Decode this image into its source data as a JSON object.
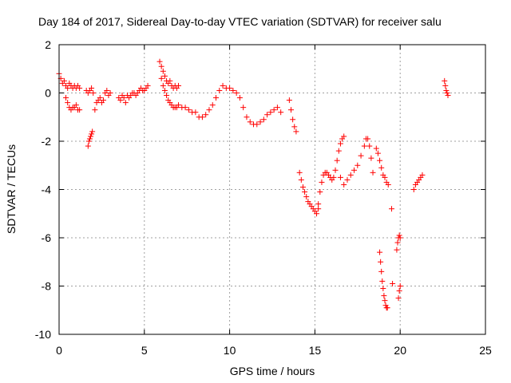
{
  "chart_data": {
    "type": "scatter",
    "title": "Day 184 of 2017, Sidereal Day-to-day VTEC variation (SDTVAR) for receiver salu",
    "xlabel": "GPS time / hours",
    "ylabel": "SDTVAR / TECUs",
    "xlim": [
      0,
      25
    ],
    "ylim": [
      -10,
      2
    ],
    "xticks": [
      0,
      5,
      10,
      15,
      20,
      25
    ],
    "yticks": [
      -10,
      -8,
      -6,
      -4,
      -2,
      0,
      2
    ],
    "grid": true,
    "marker": "plus",
    "marker_color": "#ff0000",
    "series": [
      {
        "x": [
          0.0,
          0.1,
          0.2,
          0.3,
          0.4,
          0.5,
          0.6,
          0.7,
          0.8,
          0.9,
          1.0,
          1.1,
          1.2,
          0.4,
          0.5,
          0.6,
          0.7,
          0.8,
          0.9,
          1.0,
          1.1,
          1.2,
          1.6,
          1.7,
          1.8,
          1.9,
          2.0,
          2.1,
          2.2,
          2.3,
          2.4,
          2.5,
          2.6,
          2.7,
          2.8,
          2.9,
          3.0,
          1.7,
          1.75,
          1.8,
          1.85,
          1.9,
          1.95,
          3.5,
          3.6,
          3.7,
          3.8,
          3.9,
          4.0,
          4.1,
          4.2,
          4.3,
          4.4,
          4.5,
          4.6,
          4.7,
          4.8,
          4.9,
          5.0,
          5.1,
          5.2,
          5.9,
          6.0,
          6.1,
          6.2,
          6.3,
          6.4,
          6.5,
          6.6,
          6.7,
          6.8,
          6.9,
          7.0,
          6.0,
          6.1,
          6.2,
          6.3,
          6.4,
          6.5,
          6.6,
          6.7,
          6.8,
          6.9,
          7.0,
          7.2,
          7.4,
          7.6,
          7.8,
          8.0,
          8.2,
          8.4,
          8.6,
          8.8,
          9.0,
          9.2,
          9.4,
          9.6,
          9.8,
          10.0,
          10.2,
          10.4,
          10.6,
          10.8,
          11.0,
          11.2,
          11.4,
          11.6,
          11.8,
          12.0,
          12.2,
          12.4,
          12.6,
          12.8,
          13.0,
          13.5,
          13.6,
          13.7,
          13.8,
          13.9,
          14.1,
          14.2,
          14.3,
          14.4,
          14.5,
          14.6,
          14.7,
          14.8,
          14.9,
          15.0,
          15.1,
          15.2,
          15.2,
          15.3,
          15.4,
          15.5,
          15.6,
          15.7,
          15.8,
          15.9,
          16.0,
          16.1,
          16.2,
          16.3,
          16.4,
          16.5,
          16.6,
          16.7,
          16.5,
          16.7,
          16.9,
          17.1,
          17.3,
          17.5,
          17.7,
          17.9,
          18.0,
          18.1,
          18.2,
          18.3,
          18.4,
          18.6,
          18.7,
          18.8,
          18.9,
          19.0,
          19.1,
          19.2,
          19.3,
          18.8,
          18.85,
          18.9,
          18.95,
          19.0,
          19.05,
          19.1,
          19.15,
          19.2,
          19.25,
          19.5,
          19.55,
          19.8,
          19.85,
          19.9,
          19.95,
          20.0,
          19.9,
          19.95,
          20.0,
          20.8,
          20.9,
          21.0,
          21.1,
          21.2,
          21.3,
          22.6,
          22.65,
          22.7,
          22.75,
          22.8
        ],
        "y": [
          0.8,
          0.6,
          0.4,
          0.5,
          0.3,
          0.2,
          0.4,
          0.3,
          0.2,
          0.3,
          0.2,
          0.3,
          0.2,
          -0.2,
          -0.4,
          -0.6,
          -0.7,
          -0.6,
          -0.6,
          -0.5,
          -0.7,
          -0.7,
          0.1,
          0.0,
          0.1,
          0.2,
          0.0,
          -0.7,
          -0.4,
          -0.3,
          -0.2,
          -0.4,
          -0.3,
          0.0,
          0.1,
          -0.1,
          0.0,
          -2.2,
          -2.0,
          -1.9,
          -1.8,
          -1.7,
          -1.6,
          -0.2,
          -0.3,
          -0.1,
          -0.2,
          -0.4,
          -0.1,
          -0.2,
          -0.1,
          0.0,
          0.0,
          -0.1,
          0.0,
          0.1,
          0.2,
          0.1,
          0.1,
          0.2,
          0.3,
          1.3,
          1.1,
          0.9,
          0.7,
          0.5,
          0.4,
          0.5,
          0.3,
          0.2,
          0.3,
          0.2,
          0.3,
          0.6,
          0.3,
          0.1,
          -0.1,
          -0.3,
          -0.4,
          -0.5,
          -0.6,
          -0.6,
          -0.6,
          -0.5,
          -0.6,
          -0.6,
          -0.7,
          -0.8,
          -0.8,
          -1.0,
          -1.0,
          -0.9,
          -0.7,
          -0.5,
          -0.2,
          0.1,
          0.3,
          0.2,
          0.2,
          0.1,
          0.0,
          -0.2,
          -0.6,
          -1.0,
          -1.2,
          -1.3,
          -1.3,
          -1.2,
          -1.1,
          -0.9,
          -0.8,
          -0.7,
          -0.6,
          -0.8,
          -0.3,
          -0.7,
          -1.1,
          -1.4,
          -1.6,
          -3.3,
          -3.6,
          -3.9,
          -4.1,
          -4.3,
          -4.5,
          -4.6,
          -4.7,
          -4.8,
          -4.9,
          -5.0,
          -4.8,
          -4.6,
          -4.1,
          -3.7,
          -3.4,
          -3.3,
          -3.3,
          -3.4,
          -3.5,
          -3.6,
          -3.5,
          -3.2,
          -2.8,
          -2.4,
          -2.1,
          -1.9,
          -1.8,
          -3.5,
          -3.8,
          -3.6,
          -3.4,
          -3.2,
          -3.0,
          -2.6,
          -2.2,
          -1.9,
          -1.9,
          -2.2,
          -2.7,
          -3.3,
          -2.3,
          -2.5,
          -2.8,
          -3.1,
          -3.4,
          -3.5,
          -3.7,
          -3.8,
          -6.6,
          -7.0,
          -7.4,
          -7.8,
          -8.1,
          -8.4,
          -8.6,
          -8.8,
          -8.9,
          -8.9,
          -4.8,
          -7.9,
          -6.5,
          -6.2,
          -6.0,
          -5.9,
          -6.0,
          -8.5,
          -8.2,
          -8.0,
          -4.0,
          -3.8,
          -3.7,
          -3.6,
          -3.5,
          -3.4,
          0.5,
          0.3,
          0.1,
          0.0,
          -0.1
        ]
      }
    ]
  }
}
